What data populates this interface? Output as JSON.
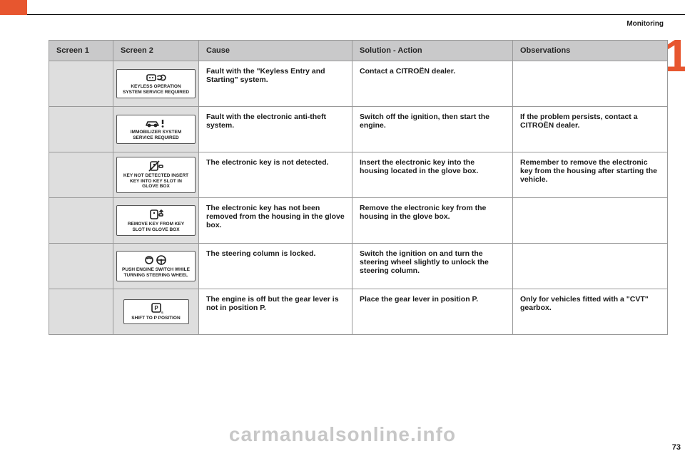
{
  "section_label": "Monitoring",
  "chapter_number": "1",
  "columns": [
    "Screen 1",
    "Screen 2",
    "Cause",
    "Solution - Action",
    "Observations"
  ],
  "rows": [
    {
      "screen2": {
        "icon": "key-fob",
        "text": "KEYLESS OPERATION SYSTEM SERVICE REQUIRED"
      },
      "cause": "Fault with the \"Keyless Entry and Starting\" system.",
      "solution": "Contact a CITROËN dealer.",
      "obs": ""
    },
    {
      "screen2": {
        "icon": "car-alert",
        "text": "IMMOBILIZER SYSTEM SERVICE REQUIRED"
      },
      "cause": "Fault with the electronic anti-theft system.",
      "solution": "Switch off the ignition, then start the engine.",
      "obs": "If the problem persists, contact a CITROËN dealer."
    },
    {
      "screen2": {
        "icon": "key-slash",
        "text": "KEY NOT DETECTED INSERT KEY INTO KEY SLOT IN GLOVE BOX"
      },
      "cause": "The electronic key is not detected.",
      "solution": "Insert the electronic key into the housing located in the glove box.",
      "obs": "Remember to remove the electronic key from the housing after starting the vehicle."
    },
    {
      "screen2": {
        "icon": "key-remove",
        "text": "REMOVE KEY FROM KEY SLOT IN GLOVE BOX"
      },
      "cause": "The electronic key has not been removed from the housing in the glove box.",
      "solution": "Remove the electronic key from the housing in the glove box.",
      "obs": ""
    },
    {
      "screen2": {
        "icon": "steer-push",
        "text": "PUSH ENGINE SWITCH WHILE TURNING STEERING WHEEL"
      },
      "cause": "The steering column is locked.",
      "solution": "Switch the ignition on and turn the steering wheel slightly to unlock the steering column.",
      "obs": ""
    },
    {
      "screen2": {
        "icon": "shift-p",
        "text": "SHIFT TO P POSITION"
      },
      "cause": "The engine is off but the gear lever is not in position P.",
      "solution": "Place the gear lever in position P.",
      "obs": "Only for vehicles fitted with a \"CVT\" gearbox."
    }
  ],
  "watermark": "carmanualsonline.info",
  "page_number": "73"
}
